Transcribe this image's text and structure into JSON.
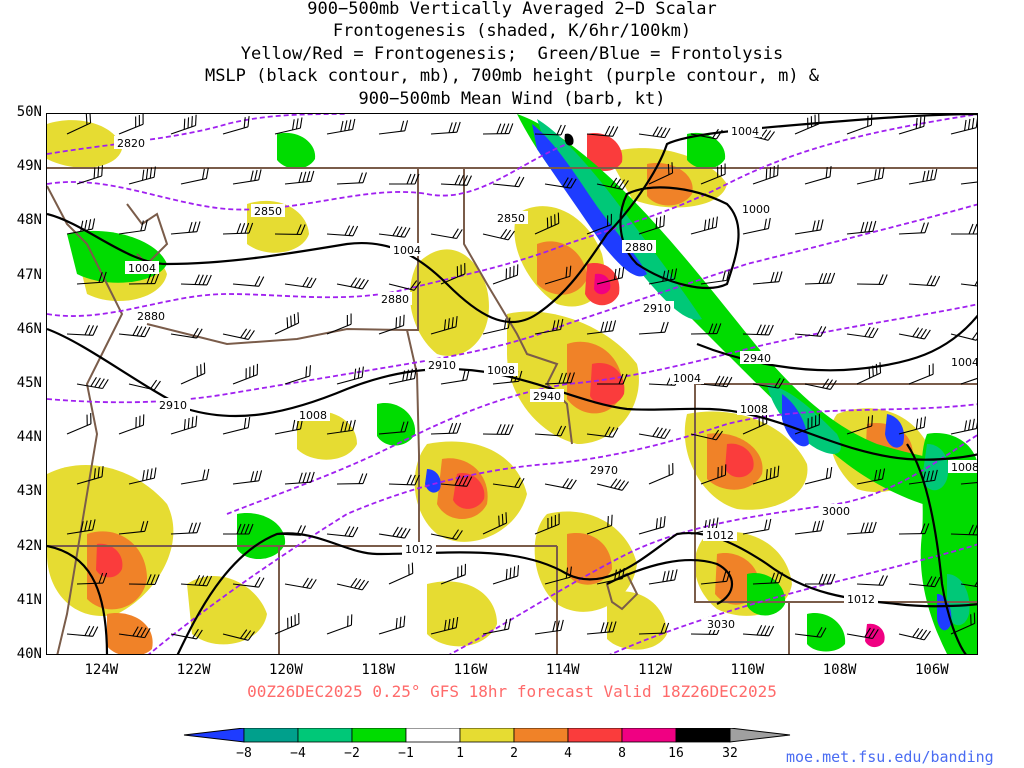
{
  "title": {
    "lines": [
      "900−500mb Vertically Averaged 2−D Scalar",
      "Frontogenesis (shaded, K/6hr/100km)",
      "Yellow/Red = Frontogenesis;  Green/Blue = Frontolysis",
      "MSLP (black contour, mb), 700mb height (purple contour, m) &",
      "900−500mb Mean Wind (barb, kt)"
    ]
  },
  "map": {
    "lat_labels": [
      "50N",
      "49N",
      "48N",
      "47N",
      "46N",
      "45N",
      "44N",
      "43N",
      "42N",
      "41N",
      "40N"
    ],
    "lon_labels": [
      "124W",
      "122W",
      "120W",
      "118W",
      "116W",
      "114W",
      "112W",
      "110W",
      "108W",
      "106W"
    ],
    "lat_range": [
      40,
      50
    ],
    "lon_range": [
      -125.2,
      -105.0
    ],
    "mslp_labels": [
      "1004",
      "1004",
      "1004",
      "1000",
      "1004",
      "1004",
      "1008",
      "1008",
      "1008",
      "1008",
      "1012",
      "1012",
      "1012"
    ],
    "height_labels": [
      "2820",
      "2850",
      "2850",
      "2880",
      "2880",
      "2880",
      "2910",
      "2910",
      "2910",
      "2940",
      "2940",
      "2970",
      "3000",
      "3030"
    ],
    "colors": {
      "mslp": "#000000",
      "height": "#a020f0",
      "border": "#7a5c4a",
      "barb": "#000000"
    }
  },
  "forecast_label": "00Z26DEC2025 0.25° GFS 18hr forecast Valid 18Z26DEC2025",
  "colorbar": {
    "labels": [
      "−8",
      "−4",
      "−2",
      "−1",
      "1",
      "2",
      "4",
      "8",
      "16",
      "32"
    ],
    "colors": [
      "#1e3cff",
      "#00a08c",
      "#00c878",
      "#00dc00",
      "#ffffff",
      "#e6dc32",
      "#f08228",
      "#fa3c3c",
      "#f00082",
      "#000000",
      "#a0a0a0"
    ]
  },
  "credit": "moe.met.fsu.edu/banding"
}
